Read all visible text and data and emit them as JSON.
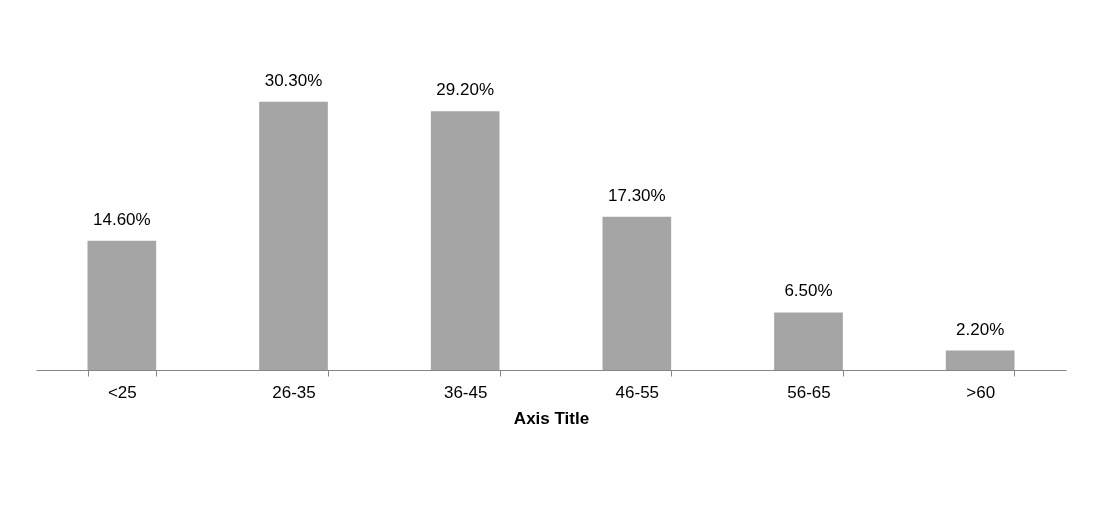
{
  "chart_data": {
    "type": "bar",
    "xlabel": "Axis Title",
    "categories": [
      "<25",
      "26-35",
      "36-45",
      "46-55",
      "56-65",
      ">60"
    ],
    "values": [
      14.6,
      30.3,
      29.2,
      17.3,
      6.5,
      2.2
    ],
    "value_labels": [
      "14.60%",
      "30.30%",
      "29.20%",
      "17.30%",
      "6.50%",
      "2.20%"
    ],
    "color": "#a5a5a5"
  }
}
